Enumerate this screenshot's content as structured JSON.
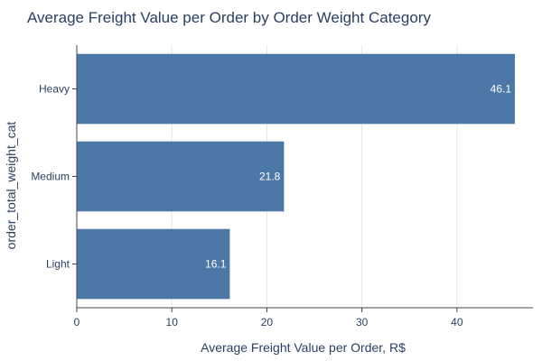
{
  "chart_data": {
    "type": "bar",
    "orientation": "horizontal",
    "title": "Average Freight Value per Order by Order Weight Category",
    "xlabel": "Average Freight Value per Order, R$",
    "ylabel": "order_total_weight_cat",
    "categories": [
      "Heavy",
      "Medium",
      "Light"
    ],
    "values": [
      46.1,
      21.8,
      16.1
    ],
    "data_labels": [
      "46.1",
      "21.8",
      "16.1"
    ],
    "xlim": [
      0,
      48
    ],
    "xticks": [
      0,
      10,
      20,
      30,
      40
    ],
    "xtick_labels": [
      "0",
      "10",
      "20",
      "30",
      "40"
    ],
    "grid": true,
    "legend": "none",
    "bar_color": "#4c78a8",
    "grid_color": "#e5e5e5",
    "text_color": "#2a3f5f"
  }
}
